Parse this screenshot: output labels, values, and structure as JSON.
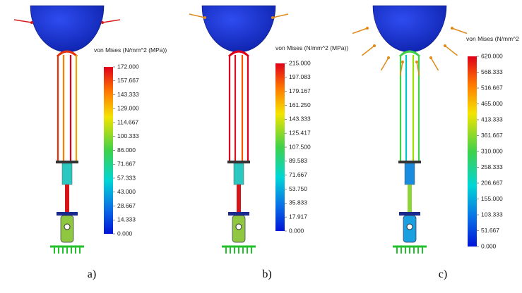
{
  "panels": [
    {
      "legend_title": "von Mises (N/mm^2 (MPa))",
      "scale_labels": [
        "172.000",
        "157.667",
        "143.333",
        "129.000",
        "114.667",
        "100.333",
        "86.000",
        "71.667",
        "57.333",
        "43.000",
        "28.667",
        "14.333",
        "0.000"
      ],
      "caption": "a)"
    },
    {
      "legend_title": "von Mises (N/mm^2 (MPa))",
      "scale_labels": [
        "215.000",
        "197.083",
        "179.167",
        "161.250",
        "143.333",
        "125.417",
        "107.500",
        "89.583",
        "71.667",
        "53.750",
        "35.833",
        "17.917",
        "0.000"
      ],
      "caption": "b)"
    },
    {
      "legend_title": "von Mises (N/mm^2",
      "scale_labels": [
        "620.000",
        "568.333",
        "516.667",
        "465.000",
        "413.333",
        "361.667",
        "310.000",
        "258.333",
        "206.667",
        "155.000",
        "103.333",
        "51.667",
        "0.000"
      ],
      "caption": "c)"
    }
  ]
}
